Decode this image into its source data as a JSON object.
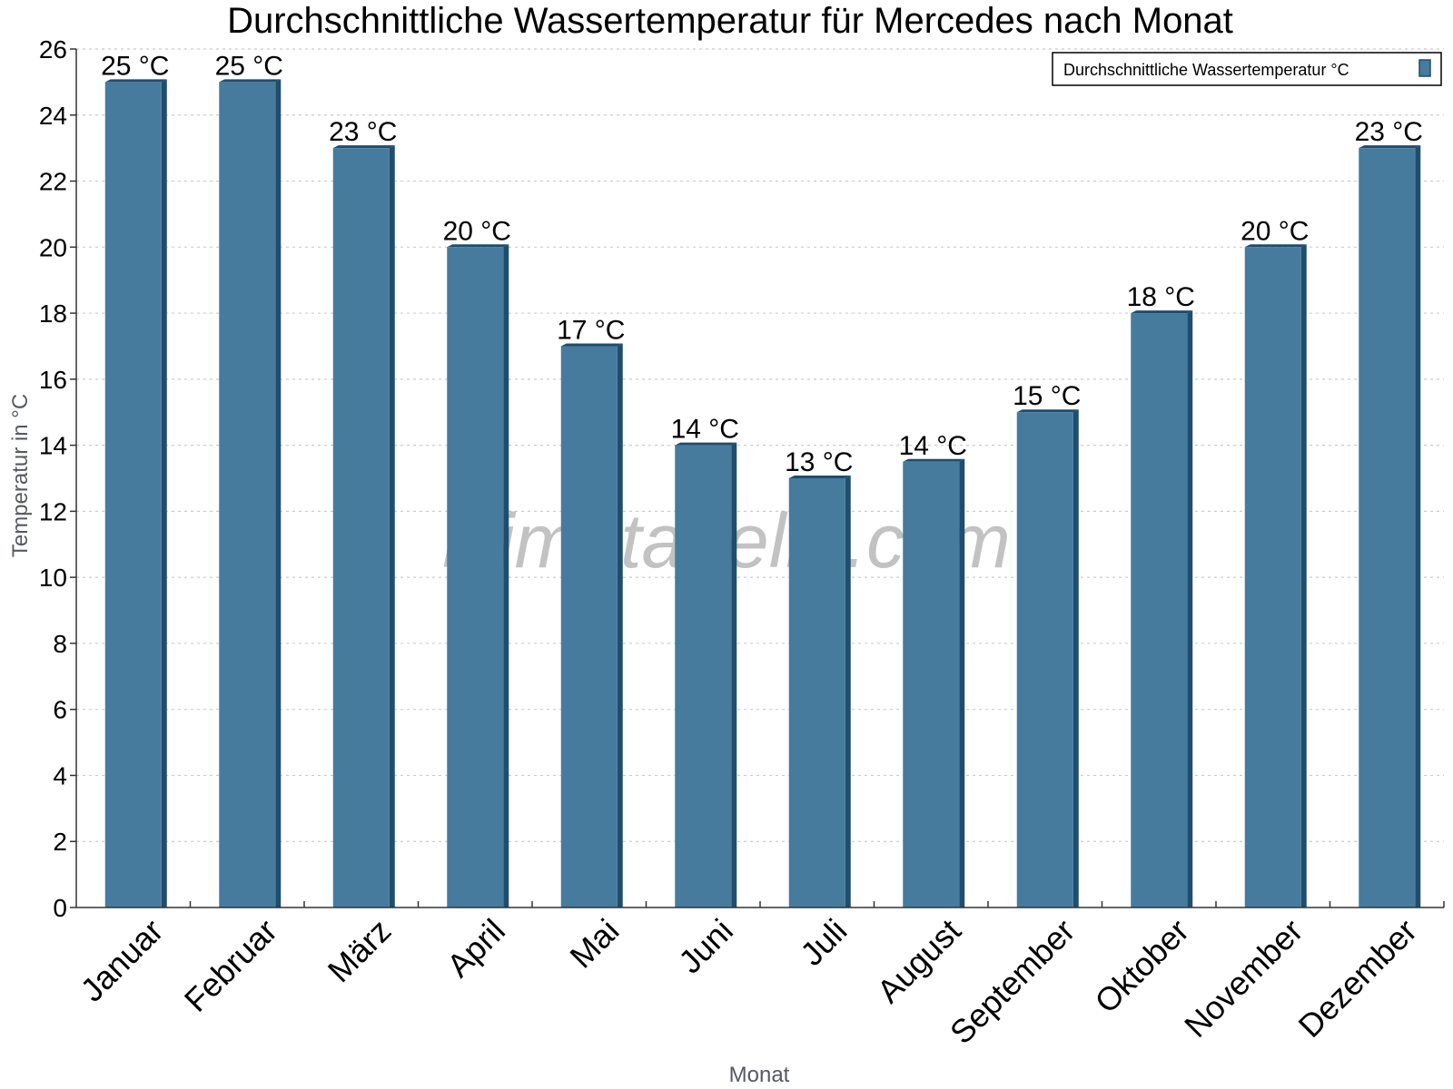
{
  "chart_data": {
    "type": "bar",
    "title": "Durchschnittliche Wassertemperatur für Mercedes nach Monat",
    "xlabel": "Monat",
    "ylabel": "Temperatur in °C",
    "categories": [
      "Januar",
      "Februar",
      "März",
      "April",
      "Mai",
      "Juni",
      "Juli",
      "August",
      "September",
      "Oktober",
      "November",
      "Dezember"
    ],
    "series": [
      {
        "name": "Durchschnittliche Wassertemperatur °C",
        "values": [
          25,
          25,
          23,
          20,
          17,
          14,
          13,
          13.5,
          15,
          18,
          20,
          23
        ],
        "labels": [
          "25 °C",
          "25 °C",
          "23 °C",
          "20 °C",
          "17 °C",
          "14 °C",
          "13 °C",
          "14 °C",
          "15 °C",
          "18 °C",
          "20 °C",
          "23 °C"
        ]
      }
    ],
    "ylim": [
      0,
      26
    ],
    "yticks": [
      0,
      2,
      4,
      6,
      8,
      10,
      12,
      14,
      16,
      18,
      20,
      22,
      24,
      26
    ],
    "grid": true,
    "legend_position": "top-right",
    "colors": {
      "bar": "#467b9d",
      "bar_side": "#1f4d6e",
      "grid": "#cccccc",
      "axis": "#333333"
    }
  },
  "watermark": "klimatabelle.com"
}
